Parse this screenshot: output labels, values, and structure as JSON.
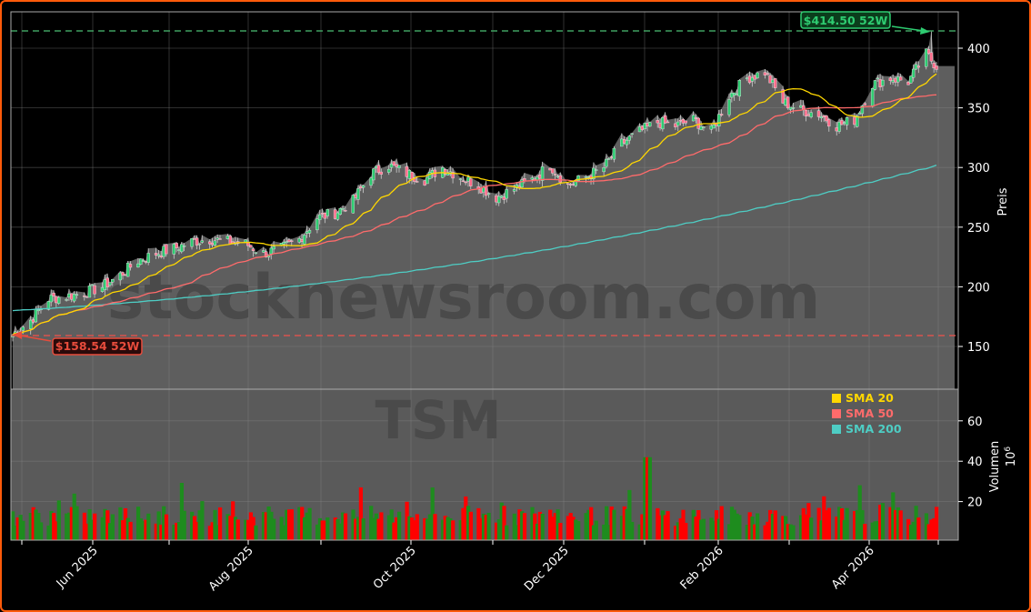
{
  "chart_data": {
    "type": "candlestick",
    "ticker": "TSM",
    "watermark": "stocknewsroom.com",
    "panels": [
      {
        "name": "price",
        "ylabel": "Preis",
        "yticks": [
          150,
          200,
          250,
          300,
          350,
          400
        ],
        "ylim": [
          120,
          432
        ],
        "grid": true
      },
      {
        "name": "volume",
        "ylabel": "Volumen",
        "yunit": "10^6",
        "yticks": [
          20,
          40,
          60
        ],
        "ylim": [
          0,
          75
        ],
        "grid": true
      }
    ],
    "xticks": [
      "Jun 2025",
      "Aug 2025",
      "Oct 2025",
      "Dec 2025",
      "Feb 2026",
      "Apr 2026"
    ],
    "annotations": {
      "high_52w": {
        "label": "$414.50 52W",
        "value": 414.5,
        "color": "#2ecc71"
      },
      "low_52w": {
        "label": "$158.54 52W",
        "value": 158.54,
        "color": "#e74c3c"
      }
    },
    "legend": [
      {
        "label": "SMA 20",
        "color": "#ffd700"
      },
      {
        "label": "SMA 50",
        "color": "#ff6b6b"
      },
      {
        "label": "SMA 200",
        "color": "#4ecdc4"
      }
    ],
    "close_points": [
      [
        "2025-05-12",
        160
      ],
      [
        "2025-05-19",
        172
      ],
      [
        "2025-05-26",
        190
      ],
      [
        "2025-06-02",
        192
      ],
      [
        "2025-06-09",
        195
      ],
      [
        "2025-06-16",
        200
      ],
      [
        "2025-06-23",
        210
      ],
      [
        "2025-06-30",
        222
      ],
      [
        "2025-07-07",
        228
      ],
      [
        "2025-07-14",
        232
      ],
      [
        "2025-07-21",
        238
      ],
      [
        "2025-07-28",
        240
      ],
      [
        "2025-08-04",
        238
      ],
      [
        "2025-08-11",
        236
      ],
      [
        "2025-08-18",
        228
      ],
      [
        "2025-08-25",
        232
      ],
      [
        "2025-09-01",
        240
      ],
      [
        "2025-09-08",
        258
      ],
      [
        "2025-09-15",
        262
      ],
      [
        "2025-09-22",
        272
      ],
      [
        "2025-09-29",
        295
      ],
      [
        "2025-10-06",
        302
      ],
      [
        "2025-10-13",
        295
      ],
      [
        "2025-10-20",
        290
      ],
      [
        "2025-10-27",
        300
      ],
      [
        "2025-11-03",
        292
      ],
      [
        "2025-11-10",
        285
      ],
      [
        "2025-11-17",
        275
      ],
      [
        "2025-11-24",
        282
      ],
      [
        "2025-12-01",
        290
      ],
      [
        "2025-12-08",
        302
      ],
      [
        "2025-12-15",
        285
      ],
      [
        "2025-12-22",
        292
      ],
      [
        "2025-12-29",
        300
      ],
      [
        "2026-01-05",
        320
      ],
      [
        "2026-01-12",
        330
      ],
      [
        "2026-01-19",
        338
      ],
      [
        "2026-01-26",
        335
      ],
      [
        "2026-02-02",
        340
      ],
      [
        "2026-02-09",
        330
      ],
      [
        "2026-02-16",
        360
      ],
      [
        "2026-02-23",
        375
      ],
      [
        "2026-03-02",
        380
      ],
      [
        "2026-03-09",
        355
      ],
      [
        "2026-03-16",
        348
      ],
      [
        "2026-03-23",
        345
      ],
      [
        "2026-03-30",
        335
      ],
      [
        "2026-04-06",
        340
      ],
      [
        "2026-04-13",
        370
      ],
      [
        "2026-04-20",
        375
      ],
      [
        "2026-04-27",
        372
      ],
      [
        "2026-05-04",
        395
      ],
      [
        "2026-05-08",
        385
      ]
    ],
    "sma20_last": 368,
    "sma50_last": 358,
    "sma200_last": 302,
    "volume_peak": {
      "date": "2026-01-15",
      "value": 42
    },
    "volume_typical_range": [
      5,
      27
    ]
  }
}
